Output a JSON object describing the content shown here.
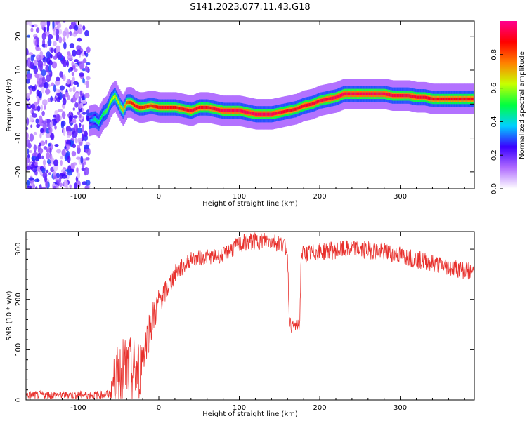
{
  "title": "S141.2023.077.11.43.G18",
  "chart_data": [
    {
      "type": "heatmap",
      "xlabel": "Height of straight line (km)",
      "ylabel": "Frequency (Hz)",
      "xlim": [
        -165,
        392
      ],
      "ylim": [
        -25,
        24.5
      ],
      "xticks": [
        -100,
        0,
        100,
        200,
        300
      ],
      "yticks": [
        -20,
        -10,
        0,
        10,
        20
      ],
      "colorbar": {
        "label": "Normalized spectral amplitude",
        "range": [
          0,
          1
        ],
        "ticks": [
          0.0,
          0.2,
          0.4,
          0.6,
          0.8
        ],
        "tick_labels": [
          "0.0",
          "0.2",
          "0.4",
          "0.6",
          "0.8"
        ],
        "colormap": [
          "#ffffff",
          "#b06cff",
          "#3a00ff",
          "#00d0ff",
          "#00ff40",
          "#c8ff00",
          "#ff8000",
          "#ff0000",
          "#ff0090"
        ]
      },
      "noise_region_x": [
        -165,
        -87
      ],
      "ridge": {
        "x": [
          -87,
          -80,
          -75,
          -70,
          -65,
          -60,
          -55,
          -50,
          -45,
          -40,
          -35,
          -30,
          -25,
          -20,
          -10,
          0,
          10,
          20,
          30,
          40,
          50,
          60,
          70,
          80,
          90,
          100,
          110,
          120,
          130,
          140,
          150,
          160,
          170,
          180,
          190,
          200,
          210,
          220,
          230,
          240,
          250,
          260,
          270,
          280,
          290,
          300,
          310,
          320,
          330,
          340,
          350,
          360,
          370,
          380,
          392
        ],
        "y": [
          -5,
          -4.5,
          -5.5,
          -3,
          -2,
          1,
          2.5,
          0,
          -2,
          0.5,
          0.5,
          -0.5,
          -1,
          -1,
          -0.5,
          -1,
          -1,
          -1,
          -1.5,
          -2,
          -1,
          -1,
          -1.5,
          -2,
          -2,
          -2,
          -2.5,
          -3,
          -3,
          -3,
          -2.5,
          -2,
          -1.5,
          -0.5,
          0,
          1,
          1.5,
          2,
          3,
          3,
          3,
          3,
          3,
          3,
          2.5,
          2.5,
          2.5,
          2,
          2,
          1.5,
          1.5,
          1.5,
          1.5,
          1.5,
          1.5
        ],
        "amplitude": [
          0.3,
          0.45,
          0.5,
          0.5,
          0.55,
          0.6,
          0.65,
          0.65,
          0.7,
          0.8,
          0.85,
          0.9,
          0.9,
          0.85,
          0.85,
          0.9,
          0.9,
          0.88,
          0.9,
          0.92,
          0.9,
          0.9,
          0.92,
          0.95,
          0.95,
          0.95,
          0.95,
          0.95,
          0.95,
          0.95,
          0.92,
          0.9,
          0.9,
          0.92,
          0.92,
          0.93,
          0.93,
          0.95,
          0.95,
          0.95,
          0.95,
          0.95,
          0.95,
          0.95,
          0.93,
          0.93,
          0.93,
          0.92,
          0.92,
          0.9,
          0.9,
          0.9,
          0.9,
          0.9,
          0.9
        ]
      }
    },
    {
      "type": "line",
      "xlabel": "Height of straight line (km)",
      "ylabel": "SNR (10 * v/v)",
      "xlim": [
        -165,
        392
      ],
      "ylim": [
        0,
        335
      ],
      "xticks": [
        -100,
        0,
        100,
        200,
        300
      ],
      "yticks": [
        0,
        100,
        200,
        300
      ],
      "color": "#e8302c",
      "series": [
        {
          "x": [
            -165,
            -120,
            -80,
            -60,
            -55,
            -45,
            -35,
            -25,
            -20,
            -10,
            0,
            10,
            20,
            30,
            40,
            50,
            60,
            70,
            80,
            90,
            100,
            110,
            120,
            130,
            140,
            150,
            155,
            160,
            162,
            165,
            170,
            175,
            177,
            180,
            190,
            200,
            220,
            240,
            260,
            280,
            300,
            320,
            340,
            360,
            380,
            392
          ],
          "y": [
            10,
            10,
            10,
            12,
            45,
            60,
            60,
            55,
            90,
            150,
            195,
            220,
            250,
            265,
            280,
            282,
            285,
            285,
            288,
            300,
            308,
            315,
            315,
            318,
            316,
            312,
            310,
            295,
            160,
            145,
            148,
            148,
            290,
            290,
            292,
            295,
            298,
            300,
            298,
            295,
            288,
            280,
            272,
            265,
            258,
            255
          ],
          "noise": [
            8,
            8,
            8,
            10,
            50,
            65,
            70,
            70,
            40,
            40,
            28,
            22,
            20,
            18,
            15,
            15,
            15,
            15,
            15,
            18,
            18,
            18,
            18,
            18,
            18,
            18,
            16,
            16,
            12,
            12,
            12,
            12,
            18,
            18,
            18,
            18,
            18,
            18,
            18,
            18,
            18,
            18,
            18,
            18,
            18,
            18
          ]
        }
      ]
    }
  ]
}
